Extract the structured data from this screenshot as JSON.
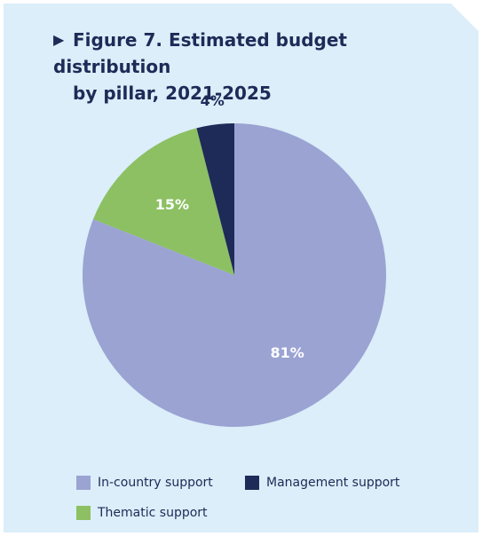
{
  "header": {
    "arrow": "▶",
    "title_line1": "Figure 7. Estimated budget distribution",
    "title_line2": "by pillar, 2021-2025"
  },
  "chart_data": {
    "type": "pie",
    "title": "Figure 7. Estimated budget distribution by pillar, 2021-2025",
    "slices": [
      {
        "name": "In-country support",
        "value": 81,
        "label": "81%",
        "color": "#9ba3d3",
        "label_color": "#ffffff"
      },
      {
        "name": "Thematic support",
        "value": 15,
        "label": "15%",
        "color": "#8cc063",
        "label_color": "#ffffff"
      },
      {
        "name": "Management support",
        "value": 4,
        "label": "4%",
        "color": "#1e2a57",
        "label_color": "#1e2a57"
      }
    ],
    "legend_position": "bottom"
  },
  "legend": {
    "items": [
      {
        "label": "In-country support",
        "color": "#9ba3d3"
      },
      {
        "label": "Management support",
        "color": "#1e2a57"
      },
      {
        "label": "Thematic support",
        "color": "#8cc063"
      }
    ]
  },
  "colors": {
    "panel_background": "#dbeef9",
    "text": "#1e2a57"
  }
}
